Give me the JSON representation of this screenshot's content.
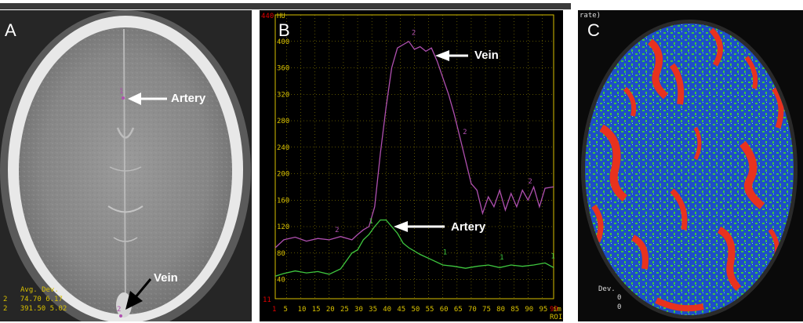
{
  "panel_a": {
    "label": "A",
    "artery_label": "Artery",
    "vein_label": "Vein",
    "roi1_marker": "1",
    "roi2_marker": "2",
    "stats": {
      "header": "Avg. Dev.",
      "rows": [
        {
          "id": "2",
          "avg": "74.70",
          "dev": "6.17"
        },
        {
          "id": "2",
          "avg": "391.50",
          "dev": "5.02"
        }
      ]
    }
  },
  "panel_b": {
    "label": "B",
    "vein_label": "Vein",
    "artery_label": "Artery",
    "unit_top": "HU",
    "y_top": "440",
    "y_bottom": "11",
    "x_first": "1",
    "x_last": "99",
    "x_unit": "im",
    "x_unit2": "ROI",
    "chart_data": {
      "type": "line",
      "x_ticks": [
        1,
        5,
        10,
        15,
        20,
        25,
        30,
        35,
        40,
        45,
        50,
        55,
        60,
        65,
        70,
        75,
        80,
        85,
        90,
        95,
        99
      ],
      "y_ticks": [
        40,
        80,
        120,
        160,
        200,
        240,
        280,
        320,
        360,
        400
      ],
      "xlim": [
        1,
        99
      ],
      "ylim": [
        11,
        440
      ],
      "series": [
        {
          "name": "1",
          "color": "#3fc83f",
          "x": [
            1,
            4,
            8,
            12,
            16,
            20,
            24,
            28,
            30,
            32,
            34,
            36,
            38,
            40,
            42,
            44,
            46,
            48,
            52,
            56,
            60,
            64,
            68,
            72,
            76,
            80,
            84,
            88,
            92,
            96,
            99
          ],
          "y": [
            45,
            49,
            53,
            50,
            52,
            48,
            56,
            80,
            85,
            100,
            108,
            120,
            130,
            130,
            120,
            110,
            95,
            88,
            78,
            70,
            62,
            60,
            57,
            60,
            62,
            58,
            62,
            60,
            62,
            65,
            58
          ]
        },
        {
          "name": "2",
          "color": "#b050b0",
          "x": [
            1,
            4,
            8,
            12,
            16,
            20,
            24,
            28,
            30,
            32,
            34,
            36,
            38,
            40,
            42,
            44,
            46,
            48,
            50,
            52,
            54,
            56,
            58,
            60,
            62,
            64,
            66,
            68,
            70,
            72,
            74,
            76,
            78,
            80,
            82,
            84,
            86,
            88,
            90,
            92,
            94,
            96,
            99
          ],
          "y": [
            88,
            100,
            104,
            98,
            102,
            100,
            105,
            100,
            108,
            115,
            120,
            150,
            230,
            300,
            360,
            390,
            395,
            400,
            388,
            392,
            385,
            390,
            370,
            345,
            320,
            290,
            255,
            220,
            185,
            175,
            140,
            165,
            150,
            175,
            145,
            170,
            150,
            175,
            160,
            180,
            150,
            178,
            180
          ]
        }
      ],
      "point_labels": [
        {
          "series": "1",
          "x": 34,
          "y": 125,
          "text": "1"
        },
        {
          "series": "1",
          "x": 60,
          "y": 78,
          "text": "1"
        },
        {
          "series": "1",
          "x": 80,
          "y": 70,
          "text": "1"
        },
        {
          "series": "1",
          "x": 98,
          "y": 72,
          "text": "1"
        },
        {
          "series": "2",
          "x": 22,
          "y": 112,
          "text": "2"
        },
        {
          "series": "2",
          "x": 49,
          "y": 410,
          "text": "2"
        },
        {
          "series": "2",
          "x": 67,
          "y": 260,
          "text": "2"
        },
        {
          "series": "2",
          "x": 90,
          "y": 185,
          "text": "2"
        }
      ]
    }
  },
  "panel_c": {
    "label": "C",
    "rate_label": "rate)",
    "dev_label": "Dev.",
    "dev_vals": [
      "0",
      "0"
    ]
  }
}
